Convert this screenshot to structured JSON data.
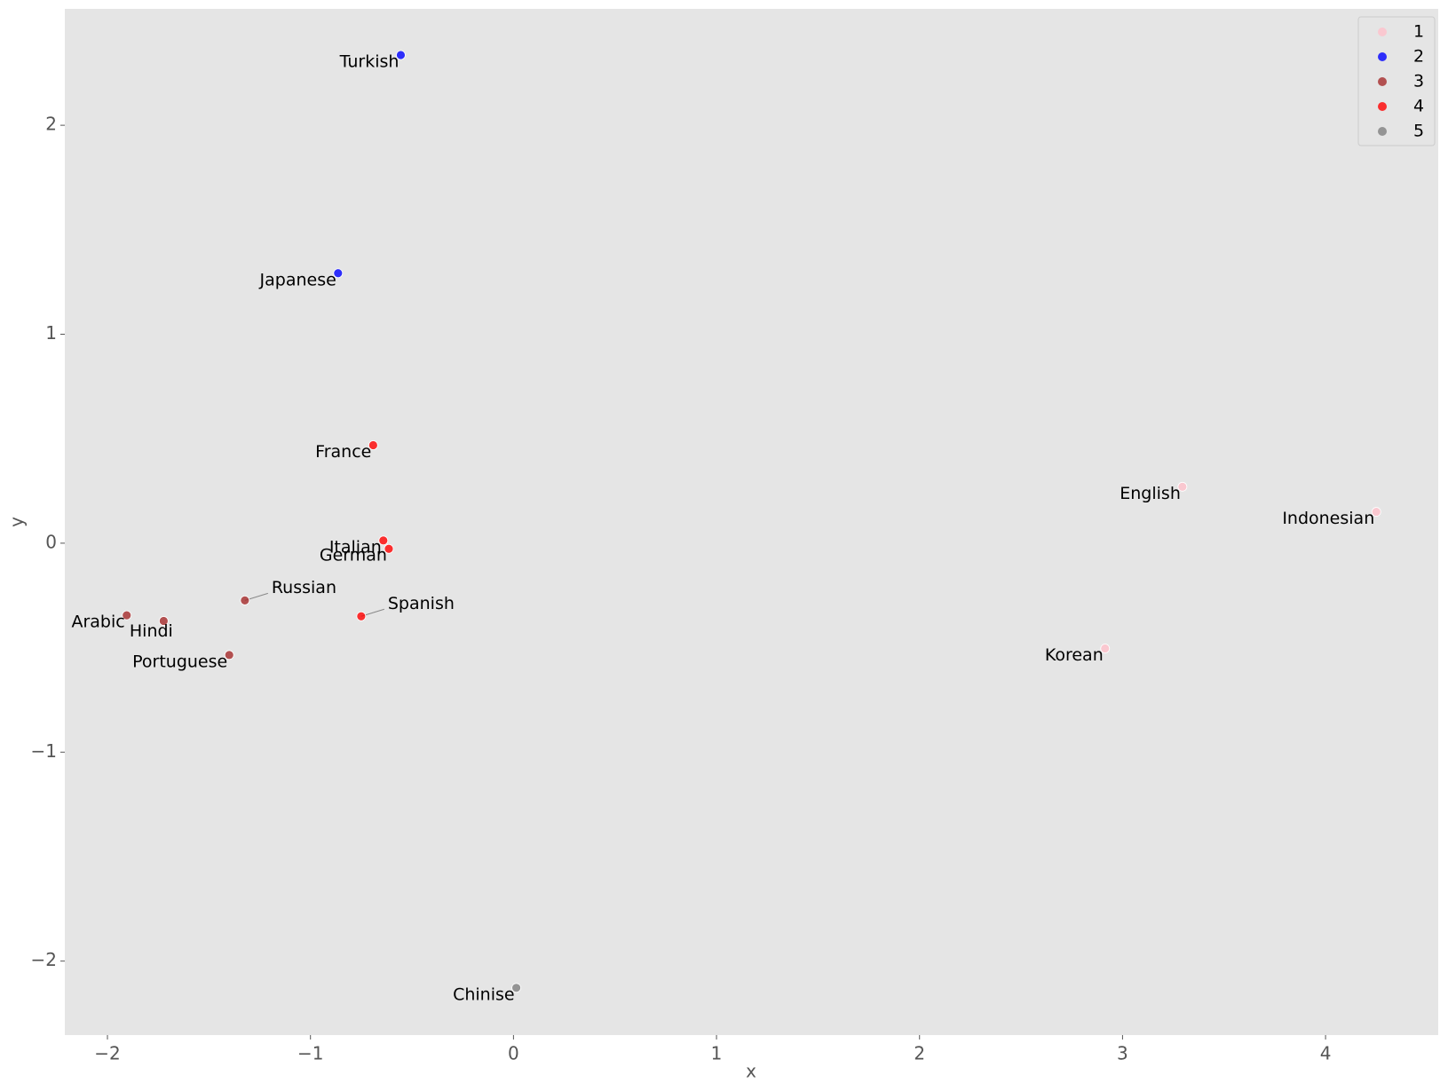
{
  "chart_data": {
    "type": "scatter",
    "x_label": "x",
    "y_label": "y",
    "xlim": [
      -2.21,
      4.555
    ],
    "ylim": [
      -2.354,
      2.557
    ],
    "xticks": [
      {
        "value": -2,
        "label": "−2"
      },
      {
        "value": -1,
        "label": "−1"
      },
      0,
      1,
      2,
      3,
      4
    ],
    "yticks": [
      {
        "value": -2,
        "label": "−2"
      },
      {
        "value": -1,
        "label": "−1"
      },
      0,
      1,
      2
    ],
    "grid": false,
    "legend": "upper right",
    "series": [
      {
        "name": "1",
        "color": "#ffc0cb",
        "x": [
          3.295,
          4.25,
          2.914
        ],
        "y": [
          0.27,
          0.15,
          -0.504
        ],
        "labels": [
          "English",
          "Indonesian",
          "Korean"
        ]
      },
      {
        "name": "2",
        "color": "#0000ff",
        "x": [
          -0.555,
          -0.864
        ],
        "y": [
          2.336,
          1.292
        ],
        "labels": [
          "Turkish",
          "Japanese"
        ]
      },
      {
        "name": "3",
        "color": "#a52a2a",
        "x": [
          -1.323,
          -1.905,
          -1.723,
          -1.4
        ],
        "y": [
          -0.274,
          -0.345,
          -0.372,
          -0.535
        ],
        "labels": [
          "Russian",
          "Arabic",
          "Hindi",
          "Portuguese"
        ]
      },
      {
        "name": "4",
        "color": "#ff0000",
        "x": [
          -0.691,
          -0.641,
          -0.614,
          -0.75
        ],
        "y": [
          0.469,
          0.013,
          -0.027,
          -0.35
        ],
        "labels": [
          "France",
          "Italian",
          "German",
          "Spanish"
        ]
      },
      {
        "name": "5",
        "color": "#808080",
        "x": [
          0.014
        ],
        "y": [
          -2.128
        ],
        "labels": [
          "Chinise"
        ]
      }
    ]
  }
}
